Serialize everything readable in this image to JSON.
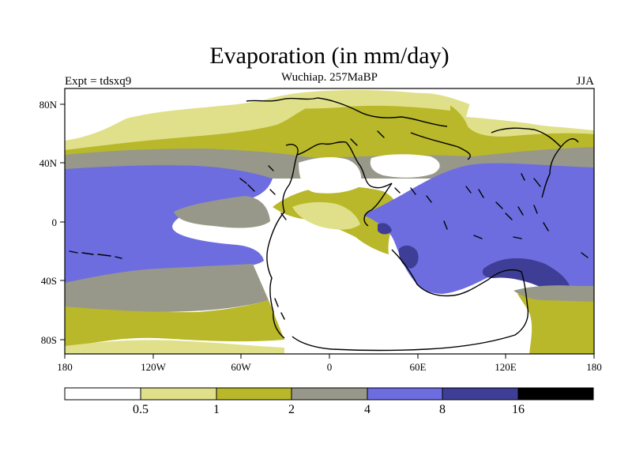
{
  "title": "Evaporation (in mm/day)",
  "left_label": "Expt = tdsxq9",
  "center_label": "Wuchiap. 257MaBP",
  "right_label": "JJA",
  "x_ticks": [
    "180",
    "120W",
    "60W",
    "0",
    "60E",
    "120E",
    "180"
  ],
  "y_ticks": [
    "80N",
    "40N",
    "0",
    "40S",
    "80S"
  ],
  "colorbar": {
    "labels": [
      "0.5",
      "1",
      "2",
      "4",
      "8",
      "16"
    ],
    "colors": [
      "#ffffff",
      "#e0e08a",
      "#b8b82a",
      "#98988a",
      "#6d6de0",
      "#3e3e96",
      "#000000"
    ]
  },
  "colors": {
    "white": "#ffffff",
    "c1": "#e0e08a",
    "c2": "#b8b82a",
    "c3": "#98988a",
    "c4": "#6d6de0",
    "c5": "#3e3e96",
    "line": "#000000"
  }
}
